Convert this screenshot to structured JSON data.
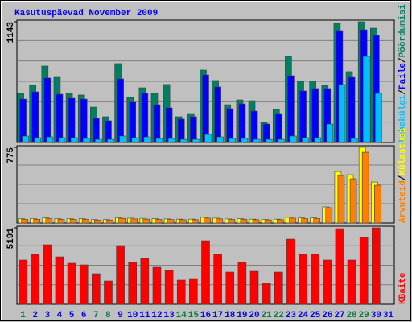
{
  "title": "Kasutuspäevad November 2009",
  "chart_data": [
    {
      "type": "bar",
      "ylim": [
        0,
        1143
      ],
      "yticks": [
        1143
      ],
      "legend_separator": "/",
      "series": [
        {
          "name": "Pöördumisi",
          "color": "#008060",
          "values": [
            465,
            541,
            724,
            617,
            465,
            450,
            335,
            244,
            747,
            427,
            518,
            465,
            549,
            244,
            274,
            686,
            587,
            358,
            404,
            396,
            191,
            312,
            815,
            579,
            579,
            541,
            1128,
            671,
            1143,
            1082,
            null
          ]
        },
        {
          "name": "Faile",
          "color": "#0000ff",
          "values": [
            411,
            480,
            610,
            457,
            419,
            411,
            229,
            206,
            602,
            381,
            465,
            358,
            328,
            221,
            244,
            640,
            526,
            320,
            366,
            297,
            175,
            274,
            632,
            488,
            511,
            511,
            1059,
            617,
            1067,
            1013,
            null
          ]
        },
        {
          "name": "Lehekülgi",
          "color": "#00c0ff",
          "values": [
            61,
            46,
            53,
            46,
            46,
            38,
            30,
            30,
            61,
            46,
            53,
            38,
            38,
            30,
            30,
            76,
            53,
            38,
            38,
            30,
            30,
            30,
            61,
            46,
            46,
            175,
            549,
            38,
            815,
            465,
            null
          ]
        }
      ]
    },
    {
      "type": "bar",
      "ylim": [
        0,
        775
      ],
      "yticks": [
        775
      ],
      "legend_separator": "/",
      "series": [
        {
          "name": "Külastusi",
          "color": "#ffff00",
          "values": [
            45,
            45,
            52,
            45,
            45,
            45,
            35,
            35,
            55,
            50,
            48,
            45,
            42,
            40,
            40,
            58,
            50,
            42,
            45,
            40,
            38,
            40,
            58,
            52,
            52,
            165,
            527,
            494,
            775,
            420,
            null
          ]
        },
        {
          "name": "Arvuteid",
          "color": "#ff8000",
          "values": [
            38,
            38,
            45,
            38,
            38,
            38,
            30,
            30,
            48,
            42,
            40,
            38,
            36,
            34,
            34,
            50,
            42,
            36,
            38,
            34,
            32,
            34,
            50,
            45,
            45,
            157,
            486,
            453,
            725,
            387,
            null
          ]
        }
      ]
    },
    {
      "type": "bar",
      "ylim": [
        0,
        5191
      ],
      "yticks": [
        5191
      ],
      "categories": [
        "1",
        "2",
        "3",
        "4",
        "5",
        "6",
        "7",
        "8",
        "9",
        "10",
        "11",
        "12",
        "13",
        "14",
        "15",
        "16",
        "17",
        "18",
        "19",
        "20",
        "21",
        "22",
        "23",
        "24",
        "25",
        "26",
        "27",
        "28",
        "29",
        "30",
        "31"
      ],
      "category_colors": [
        "#008040",
        "#0000ff",
        "#0000ff",
        "#0000ff",
        "#0000ff",
        "#0000ff",
        "#008040",
        "#008040",
        "#0000ff",
        "#0000ff",
        "#0000ff",
        "#0000ff",
        "#0000ff",
        "#008040",
        "#008040",
        "#0000ff",
        "#0000ff",
        "#0000ff",
        "#0000ff",
        "#0000ff",
        "#008040",
        "#008040",
        "#0000ff",
        "#0000ff",
        "#0000ff",
        "#0000ff",
        "#0000ff",
        "#008040",
        "#008040",
        "#0000ff",
        "#0000ff"
      ],
      "series": [
        {
          "name": "KBaite",
          "color": "#ff0000",
          "values": [
            3005,
            3386,
            4042,
            3222,
            2786,
            2676,
            2076,
            1584,
            3988,
            2841,
            3114,
            2513,
            2294,
            1639,
            1748,
            4315,
            3386,
            2185,
            2841,
            2240,
            1420,
            2185,
            4424,
            3386,
            3386,
            3005,
            5135,
            3005,
            4534,
            5191,
            null
          ]
        }
      ]
    }
  ]
}
